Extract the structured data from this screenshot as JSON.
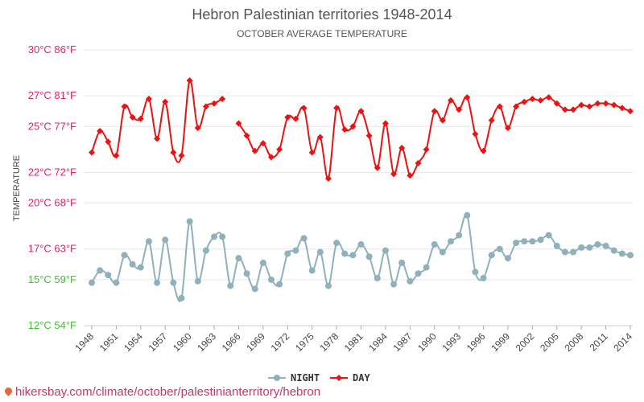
{
  "chart_data": {
    "type": "line",
    "title": "Hebron Palestinian territories 1948-2014",
    "subtitle": "OCTOBER AVERAGE TEMPERATURE",
    "ylabel": "TEMPERATURE",
    "ylim": [
      12,
      30
    ],
    "y_ticks": [
      {
        "value": 30,
        "label": "30°C 86°F",
        "color": "#e0245e"
      },
      {
        "value": 27,
        "label": "27°C 81°F",
        "color": "#e0245e"
      },
      {
        "value": 25,
        "label": "25°C 77°F",
        "color": "#e0245e"
      },
      {
        "value": 22,
        "label": "22°C 72°F",
        "color": "#e0245e"
      },
      {
        "value": 20,
        "label": "20°C 68°F",
        "color": "#e0245e"
      },
      {
        "value": 17,
        "label": "17°C 63°F",
        "color": "#e0245e"
      },
      {
        "value": 15,
        "label": "15°C 59°F",
        "color": "#44bb33"
      },
      {
        "value": 12,
        "label": "12°C 54°F",
        "color": "#44bb33"
      }
    ],
    "x_ticks": [
      "1948",
      "1951",
      "1954",
      "1957",
      "1960",
      "1963",
      "1966",
      "1969",
      "1972",
      "1975",
      "1978",
      "1981",
      "1984",
      "1987",
      "1990",
      "1993",
      "1996",
      "1999",
      "2002",
      "2005",
      "2008",
      "2011",
      "2014"
    ],
    "series": [
      {
        "name": "DAY",
        "color": "#ee1111",
        "marker": "diamond",
        "points": [
          [
            1948,
            23.3
          ],
          [
            1949,
            24.7
          ],
          [
            1950,
            24.0
          ],
          [
            1951,
            23.1
          ],
          [
            1952,
            26.3
          ],
          [
            1953,
            25.6
          ],
          [
            1954,
            25.5
          ],
          [
            1955,
            26.8
          ],
          [
            1956,
            24.2
          ],
          [
            1957,
            26.6
          ],
          [
            1958,
            23.3
          ],
          [
            1959,
            23.1
          ],
          [
            1960,
            28.0
          ],
          [
            1961,
            24.9
          ],
          [
            1962,
            26.3
          ],
          [
            1963,
            26.5
          ],
          [
            1964,
            26.8
          ],
          [
            1966,
            25.2
          ],
          [
            1967,
            24.4
          ],
          [
            1968,
            23.4
          ],
          [
            1969,
            23.9
          ],
          [
            1970,
            23.0
          ],
          [
            1971,
            23.5
          ],
          [
            1972,
            25.6
          ],
          [
            1973,
            25.5
          ],
          [
            1974,
            26.2
          ],
          [
            1975,
            23.3
          ],
          [
            1976,
            24.3
          ],
          [
            1977,
            21.6
          ],
          [
            1978,
            26.2
          ],
          [
            1979,
            24.8
          ],
          [
            1980,
            25.0
          ],
          [
            1981,
            26.0
          ],
          [
            1982,
            24.4
          ],
          [
            1983,
            22.3
          ],
          [
            1984,
            25.2
          ],
          [
            1985,
            21.9
          ],
          [
            1986,
            23.6
          ],
          [
            1987,
            21.8
          ],
          [
            1988,
            22.6
          ],
          [
            1989,
            23.5
          ],
          [
            1990,
            26.0
          ],
          [
            1991,
            25.4
          ],
          [
            1992,
            26.7
          ],
          [
            1993,
            26.1
          ],
          [
            1994,
            26.9
          ],
          [
            1995,
            24.5
          ],
          [
            1996,
            23.4
          ],
          [
            1997,
            25.4
          ],
          [
            1998,
            26.3
          ],
          [
            1999,
            24.9
          ],
          [
            2000,
            26.3
          ],
          [
            2001,
            26.6
          ],
          [
            2002,
            26.8
          ],
          [
            2003,
            26.7
          ],
          [
            2004,
            26.9
          ],
          [
            2005,
            26.5
          ],
          [
            2006,
            26.1
          ],
          [
            2007,
            26.1
          ],
          [
            2008,
            26.4
          ],
          [
            2009,
            26.3
          ],
          [
            2010,
            26.5
          ],
          [
            2011,
            26.5
          ],
          [
            2012,
            26.4
          ],
          [
            2013,
            26.2
          ],
          [
            2014,
            26.0
          ]
        ]
      },
      {
        "name": "NIGHT",
        "color": "#8fb1bb",
        "marker": "circle",
        "points": [
          [
            1948,
            14.8
          ],
          [
            1949,
            15.6
          ],
          [
            1950,
            15.3
          ],
          [
            1951,
            14.8
          ],
          [
            1952,
            16.6
          ],
          [
            1953,
            16.0
          ],
          [
            1954,
            15.8
          ],
          [
            1955,
            17.5
          ],
          [
            1956,
            14.8
          ],
          [
            1957,
            17.6
          ],
          [
            1958,
            14.8
          ],
          [
            1959,
            13.8
          ],
          [
            1960,
            18.8
          ],
          [
            1961,
            14.9
          ],
          [
            1962,
            16.9
          ],
          [
            1963,
            17.8
          ],
          [
            1964,
            17.8
          ],
          [
            1965,
            14.6
          ],
          [
            1966,
            16.4
          ],
          [
            1967,
            15.4
          ],
          [
            1968,
            14.4
          ],
          [
            1969,
            16.1
          ],
          [
            1970,
            15.0
          ],
          [
            1971,
            14.7
          ],
          [
            1972,
            16.7
          ],
          [
            1973,
            16.9
          ],
          [
            1974,
            17.7
          ],
          [
            1975,
            15.6
          ],
          [
            1976,
            16.8
          ],
          [
            1977,
            14.6
          ],
          [
            1978,
            17.4
          ],
          [
            1979,
            16.7
          ],
          [
            1980,
            16.6
          ],
          [
            1981,
            17.3
          ],
          [
            1982,
            16.5
          ],
          [
            1983,
            15.1
          ],
          [
            1984,
            16.9
          ],
          [
            1985,
            14.7
          ],
          [
            1986,
            16.1
          ],
          [
            1987,
            14.9
          ],
          [
            1988,
            15.4
          ],
          [
            1989,
            15.8
          ],
          [
            1990,
            17.3
          ],
          [
            1991,
            16.8
          ],
          [
            1992,
            17.5
          ],
          [
            1993,
            17.9
          ],
          [
            1994,
            19.2
          ],
          [
            1995,
            15.5
          ],
          [
            1996,
            15.1
          ],
          [
            1997,
            16.6
          ],
          [
            1998,
            17.0
          ],
          [
            1999,
            16.4
          ],
          [
            2000,
            17.4
          ],
          [
            2001,
            17.5
          ],
          [
            2002,
            17.5
          ],
          [
            2003,
            17.6
          ],
          [
            2004,
            17.9
          ],
          [
            2005,
            17.2
          ],
          [
            2006,
            16.8
          ],
          [
            2007,
            16.8
          ],
          [
            2008,
            17.1
          ],
          [
            2009,
            17.1
          ],
          [
            2010,
            17.3
          ],
          [
            2011,
            17.2
          ],
          [
            2012,
            16.9
          ],
          [
            2013,
            16.7
          ],
          [
            2014,
            16.6
          ]
        ]
      }
    ],
    "legend": {
      "placement": "bottom-center",
      "items": [
        "NIGHT",
        "DAY"
      ]
    },
    "grid": true
  },
  "footer": {
    "text": "hikersbay.com/climate/october/palestinianterritory/hebron",
    "pin_icon": "location-pin-icon"
  }
}
